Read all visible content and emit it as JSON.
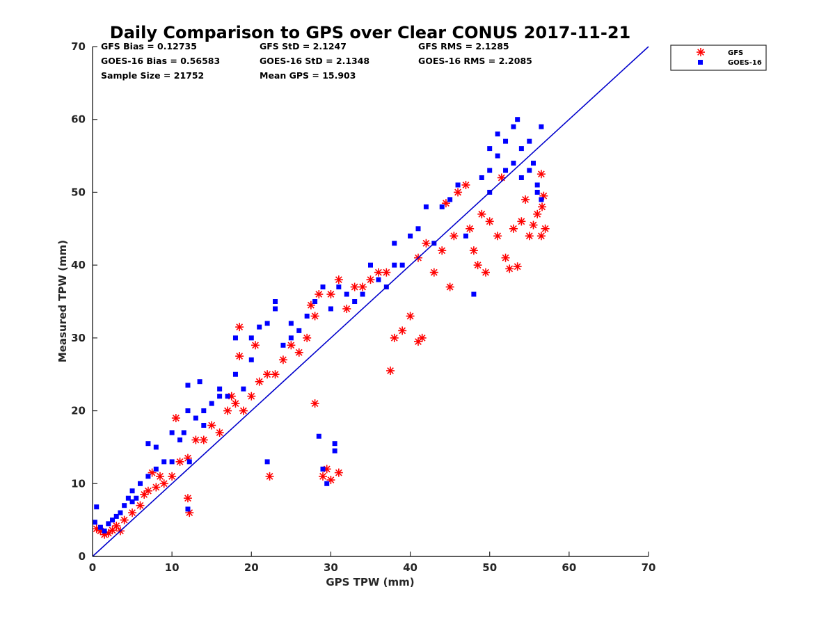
{
  "chart_data": {
    "type": "scatter",
    "title": "Daily Comparison to GPS over Clear CONUS 2017-11-21",
    "xlabel": "GPS TPW (mm)",
    "ylabel": "Measured TPW (mm)",
    "xlim": [
      0,
      70
    ],
    "ylim": [
      0,
      70
    ],
    "xticks": [
      "0",
      "10",
      "20",
      "30",
      "40",
      "50",
      "60",
      "70"
    ],
    "yticks": [
      "0",
      "10",
      "20",
      "30",
      "40",
      "50",
      "60",
      "70"
    ],
    "stats": {
      "gfs_bias": "GFS Bias = 0.12735",
      "goes_bias": "GOES-16 Bias = 0.56583",
      "sample_size": "Sample Size = 21752",
      "gfs_std": "GFS StD = 2.1247",
      "goes_std": "GOES-16 StD = 2.1348",
      "mean_gps": "Mean GPS = 15.903",
      "gfs_rms": "GFS RMS = 2.1285",
      "goes_rms": "GOES-16 RMS = 2.2085"
    },
    "legend": [
      "GFS",
      "GOES-16"
    ],
    "reference_line": {
      "name": "1:1 line",
      "x": [
        0,
        70
      ],
      "y": [
        0,
        70
      ],
      "color": "#0000cc"
    },
    "series": [
      {
        "name": "GFS",
        "marker": "asterisk",
        "color": "#ff0000",
        "points": [
          [
            0.5,
            3.8
          ],
          [
            1,
            3.5
          ],
          [
            1.5,
            3
          ],
          [
            2,
            3.2
          ],
          [
            2.5,
            3.6
          ],
          [
            3,
            4.2
          ],
          [
            3.5,
            3.5
          ],
          [
            4,
            5
          ],
          [
            5,
            6
          ],
          [
            6,
            7
          ],
          [
            6.5,
            8.5
          ],
          [
            7,
            9
          ],
          [
            7.5,
            11.5
          ],
          [
            8,
            9.5
          ],
          [
            8.5,
            11
          ],
          [
            9,
            10
          ],
          [
            10,
            11
          ],
          [
            10.5,
            19
          ],
          [
            11,
            13
          ],
          [
            12,
            13.5
          ],
          [
            12.2,
            6
          ],
          [
            12,
            8
          ],
          [
            13,
            16
          ],
          [
            14,
            16
          ],
          [
            15,
            18
          ],
          [
            16,
            17
          ],
          [
            17,
            20
          ],
          [
            17.5,
            22
          ],
          [
            18,
            21
          ],
          [
            18.5,
            27.5
          ],
          [
            18.5,
            31.5
          ],
          [
            19,
            20
          ],
          [
            20,
            22
          ],
          [
            20.5,
            29
          ],
          [
            21,
            24
          ],
          [
            22,
            25
          ],
          [
            22.3,
            11
          ],
          [
            23,
            25
          ],
          [
            24,
            27
          ],
          [
            25,
            29
          ],
          [
            26,
            28
          ],
          [
            27,
            30
          ],
          [
            27.5,
            34.5
          ],
          [
            28,
            33
          ],
          [
            28.5,
            36
          ],
          [
            28,
            21
          ],
          [
            29,
            11
          ],
          [
            29.5,
            12
          ],
          [
            30,
            10.5
          ],
          [
            31,
            11.5
          ],
          [
            30,
            36
          ],
          [
            31,
            38
          ],
          [
            32,
            34
          ],
          [
            33,
            37
          ],
          [
            34,
            37
          ],
          [
            35,
            38
          ],
          [
            36,
            39
          ],
          [
            37,
            39
          ],
          [
            37.5,
            25.5
          ],
          [
            38,
            30
          ],
          [
            39,
            31
          ],
          [
            40,
            33
          ],
          [
            41,
            29.5
          ],
          [
            41.5,
            30
          ],
          [
            41,
            41
          ],
          [
            42,
            43
          ],
          [
            43,
            39
          ],
          [
            44,
            42
          ],
          [
            44.5,
            48.5
          ],
          [
            45,
            37
          ],
          [
            45.5,
            44
          ],
          [
            46,
            50
          ],
          [
            47,
            51
          ],
          [
            47.5,
            45
          ],
          [
            48,
            42
          ],
          [
            48.5,
            40
          ],
          [
            49,
            47
          ],
          [
            49.5,
            39
          ],
          [
            50,
            46
          ],
          [
            51,
            44
          ],
          [
            51.5,
            52
          ],
          [
            52,
            41
          ],
          [
            52.5,
            39.5
          ],
          [
            53,
            45
          ],
          [
            53.5,
            39.8
          ],
          [
            54,
            46
          ],
          [
            54.5,
            49
          ],
          [
            55,
            44
          ],
          [
            55.5,
            45.5
          ],
          [
            56,
            47
          ],
          [
            56.5,
            44
          ],
          [
            56.5,
            52.5
          ],
          [
            56.8,
            49.5
          ],
          [
            56.6,
            48
          ],
          [
            57,
            45
          ]
        ]
      },
      {
        "name": "GOES-16",
        "marker": "square",
        "color": "#0000ff",
        "points": [
          [
            0.5,
            6.8
          ],
          [
            0.3,
            4.7
          ],
          [
            1,
            4
          ],
          [
            1.5,
            3.5
          ],
          [
            2,
            4.5
          ],
          [
            2.5,
            5
          ],
          [
            3,
            5.5
          ],
          [
            3.5,
            6
          ],
          [
            4,
            7
          ],
          [
            4.5,
            8
          ],
          [
            5,
            7.5
          ],
          [
            5,
            9
          ],
          [
            5.5,
            8
          ],
          [
            6,
            10
          ],
          [
            7,
            15.5
          ],
          [
            7,
            11
          ],
          [
            8,
            12
          ],
          [
            8,
            15
          ],
          [
            9,
            13
          ],
          [
            10,
            17
          ],
          [
            10,
            13
          ],
          [
            11,
            16
          ],
          [
            11.5,
            17
          ],
          [
            12,
            23.5
          ],
          [
            12,
            20
          ],
          [
            12.2,
            13
          ],
          [
            12,
            6.5
          ],
          [
            13,
            19
          ],
          [
            13.5,
            24
          ],
          [
            14,
            20
          ],
          [
            14,
            18
          ],
          [
            15,
            21
          ],
          [
            16,
            22
          ],
          [
            16,
            23
          ],
          [
            17,
            22
          ],
          [
            18,
            25
          ],
          [
            18,
            30
          ],
          [
            19,
            23
          ],
          [
            20,
            27
          ],
          [
            20,
            30
          ],
          [
            21,
            31.5
          ],
          [
            22,
            32
          ],
          [
            22,
            13
          ],
          [
            23,
            34
          ],
          [
            23,
            35
          ],
          [
            24,
            29
          ],
          [
            25,
            32
          ],
          [
            25,
            30
          ],
          [
            26,
            31
          ],
          [
            27,
            33
          ],
          [
            28,
            35
          ],
          [
            28.5,
            16.5
          ],
          [
            29,
            12
          ],
          [
            29.5,
            10
          ],
          [
            30.5,
            14.5
          ],
          [
            30.5,
            15.5
          ],
          [
            29,
            37
          ],
          [
            30,
            34
          ],
          [
            31,
            37
          ],
          [
            32,
            36
          ],
          [
            33,
            35
          ],
          [
            34,
            36
          ],
          [
            35,
            40
          ],
          [
            36,
            38
          ],
          [
            37,
            37
          ],
          [
            38,
            40
          ],
          [
            38,
            43
          ],
          [
            39,
            40
          ],
          [
            40,
            44
          ],
          [
            41,
            45
          ],
          [
            42,
            48
          ],
          [
            43,
            43
          ],
          [
            44,
            48
          ],
          [
            45,
            49
          ],
          [
            46,
            51
          ],
          [
            47,
            44
          ],
          [
            48,
            36
          ],
          [
            49,
            52
          ],
          [
            50,
            50
          ],
          [
            50,
            53
          ],
          [
            50,
            56
          ],
          [
            51,
            55
          ],
          [
            51,
            58
          ],
          [
            52,
            57
          ],
          [
            52,
            53
          ],
          [
            53,
            54
          ],
          [
            53,
            59
          ],
          [
            53.5,
            60
          ],
          [
            54,
            52
          ],
          [
            54,
            56
          ],
          [
            55,
            57
          ],
          [
            55,
            53
          ],
          [
            55.5,
            54
          ],
          [
            56,
            50
          ],
          [
            56.5,
            59
          ],
          [
            56,
            51
          ],
          [
            56.5,
            49
          ]
        ]
      }
    ]
  }
}
